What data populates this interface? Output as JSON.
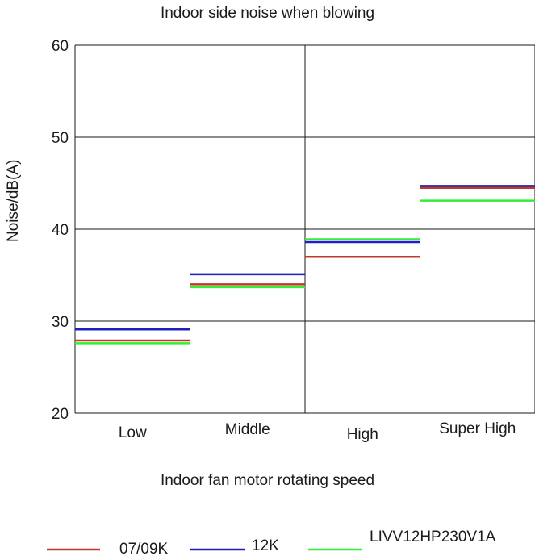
{
  "chart_data": {
    "type": "line",
    "title": "Indoor side noise when blowing",
    "xlabel": "Indoor fan motor rotating speed",
    "ylabel": "Noise/dB(A)",
    "categories": [
      "Low",
      "Middle",
      "High",
      "Super High"
    ],
    "ylim": [
      20,
      60
    ],
    "yticks": [
      "20",
      "30",
      "40",
      "50",
      "60"
    ],
    "grid": true,
    "series": [
      {
        "name": "07/09K",
        "color": "#c0392b",
        "values": [
          27.9,
          34.0,
          37.0,
          44.5
        ]
      },
      {
        "name": "12K",
        "color": "#1f1fbf",
        "values": [
          29.1,
          35.1,
          38.6,
          44.7
        ]
      },
      {
        "name": "LIVV12HP230V1A",
        "color": "#33ee33",
        "values": [
          27.6,
          33.7,
          38.9,
          43.1
        ]
      }
    ]
  }
}
